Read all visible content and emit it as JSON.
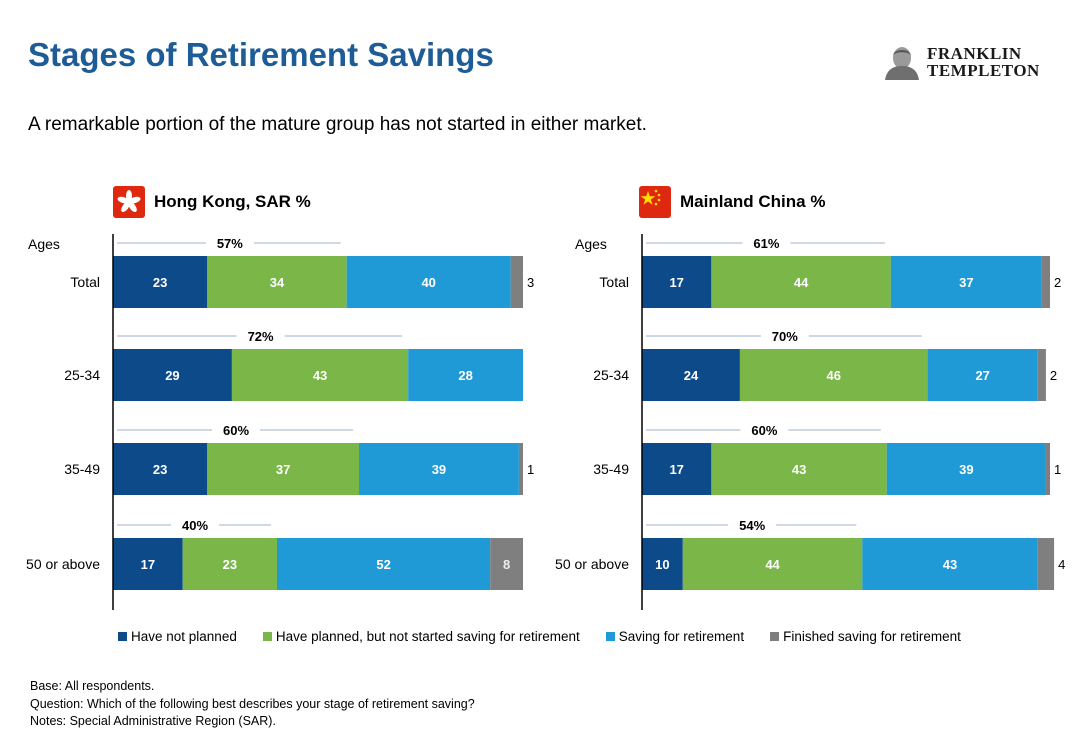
{
  "page": {
    "title": "Stages of Retirement Savings",
    "subtitle": "A remarkable portion of the mature group has not started in either market.",
    "logo": {
      "line1": "FRANKLIN",
      "line2": "TEMPLETON"
    },
    "notes": [
      "Base: All respondents.",
      "Question: Which of the following best describes your stage of retirement saving?",
      "Notes: Special Administrative Region (SAR)."
    ]
  },
  "colors": {
    "have_not_planned": "#0d4a8a",
    "planned_not_started": "#7ab648",
    "saving": "#1f9ad6",
    "finished": "#7f7f7f",
    "hk_flag": "#de2910",
    "cn_flag": "#de2910",
    "cn_star": "#ffde00"
  },
  "legend": [
    {
      "label": "Have not planned",
      "color": "#0d4a8a"
    },
    {
      "label": "Have planned, but not started saving for retirement",
      "color": "#7ab648"
    },
    {
      "label": "Saving for retirement",
      "color": "#1f9ad6"
    },
    {
      "label": "Finished saving for retirement",
      "color": "#7f7f7f"
    }
  ],
  "chart_data": [
    {
      "type": "bar",
      "orientation": "horizontal",
      "stacked": true,
      "title": "Hong Kong, SAR %",
      "axis_label": "Ages",
      "categories": [
        "Total",
        "25-34",
        "35-49",
        "50 or above"
      ],
      "series": [
        {
          "name": "Have not planned",
          "values": [
            23,
            29,
            23,
            17
          ]
        },
        {
          "name": "Have planned, but not started saving for retirement",
          "values": [
            34,
            43,
            37,
            23
          ]
        },
        {
          "name": "Saving for retirement",
          "values": [
            40,
            28,
            39,
            52
          ]
        },
        {
          "name": "Finished saving for retirement",
          "values": [
            3,
            0,
            1,
            8
          ]
        }
      ],
      "annotations": [
        "57%",
        "72%",
        "60%",
        "40%"
      ],
      "xlim": [
        0,
        100
      ]
    },
    {
      "type": "bar",
      "orientation": "horizontal",
      "stacked": true,
      "title": "Mainland China %",
      "axis_label": "Ages",
      "categories": [
        "Total",
        "25-34",
        "35-49",
        "50 or above"
      ],
      "series": [
        {
          "name": "Have not planned",
          "values": [
            17,
            24,
            17,
            10
          ]
        },
        {
          "name": "Have planned, but not started saving for retirement",
          "values": [
            44,
            46,
            43,
            44
          ]
        },
        {
          "name": "Saving for retirement",
          "values": [
            37,
            27,
            39,
            43
          ]
        },
        {
          "name": "Finished saving for retirement",
          "values": [
            2,
            2,
            1,
            4
          ]
        }
      ],
      "annotations": [
        "61%",
        "70%",
        "60%",
        "54%"
      ],
      "xlim": [
        0,
        100
      ]
    }
  ]
}
